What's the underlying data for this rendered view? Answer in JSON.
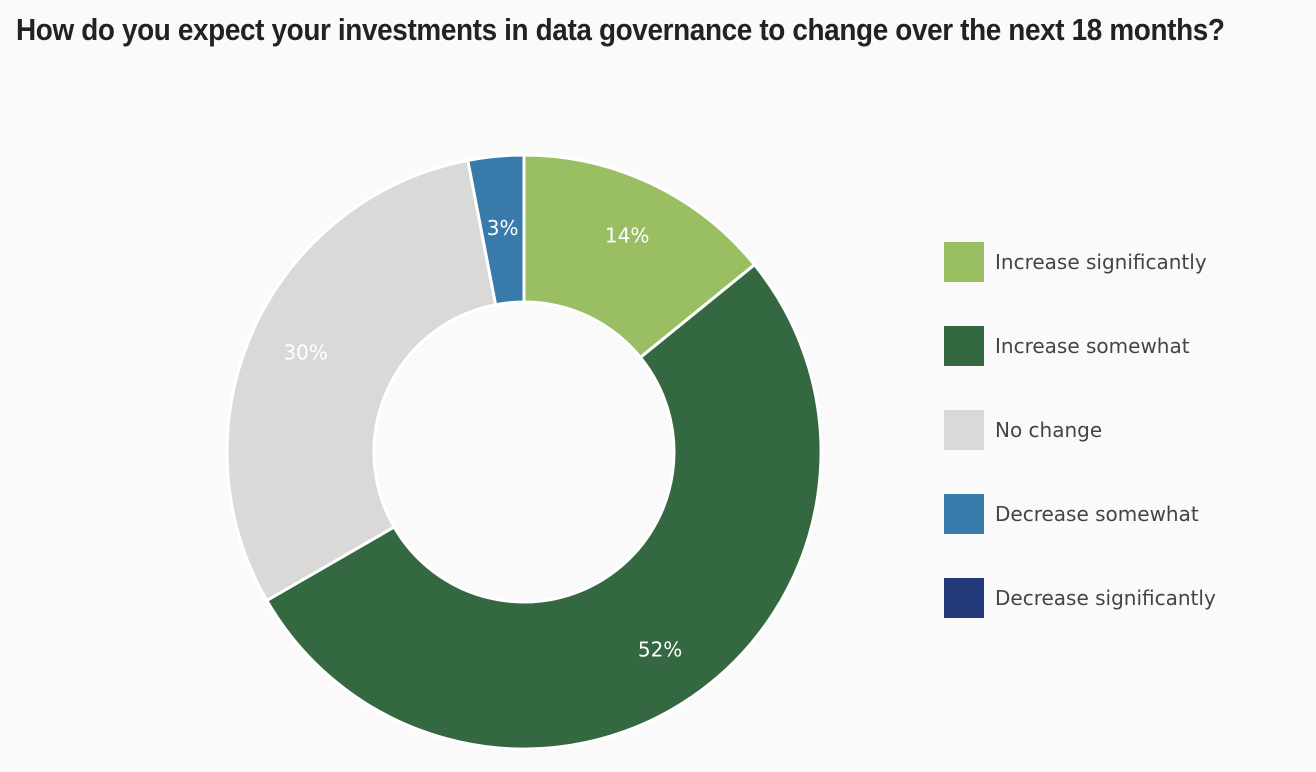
{
  "title": "How do you expect your investments in data governance to change over the next 18 months?",
  "chart_data": {
    "type": "pie",
    "donut": true,
    "legend_position": "right",
    "slices": [
      {
        "label": "Increase significantly",
        "value": 14,
        "value_label": "14%",
        "color": "#9abf63"
      },
      {
        "label": "Increase somewhat",
        "value": 52,
        "value_label": "52%",
        "color": "#336841"
      },
      {
        "label": "No change",
        "value": 30,
        "value_label": "30%",
        "color": "#d9dad8"
      },
      {
        "label": "Decrease somewhat",
        "value": 3,
        "value_label": "3%",
        "color": "#387bab"
      },
      {
        "label": "Decrease significantly",
        "value": 0,
        "value_label": "",
        "color": "#22397a"
      }
    ]
  }
}
